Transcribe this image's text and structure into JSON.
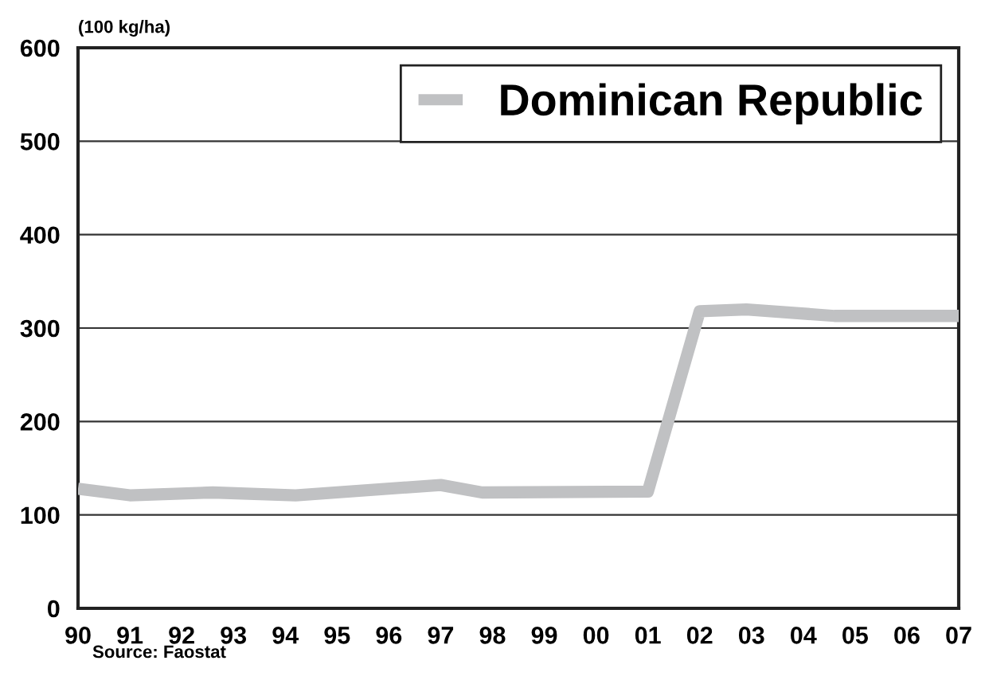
{
  "chart_data": {
    "type": "line",
    "ylabel": "(100 kg/ha)",
    "annotations": [
      "Source: Faostat"
    ],
    "series": [
      {
        "name": "Dominican Republic",
        "color": "#c0c1c3",
        "x": [
          1990,
          1991,
          1992.6,
          1994.2,
          1997,
          1997.8,
          2001,
          2002,
          2002.9,
          2004.6,
          2007
        ],
        "values": [
          128,
          121,
          124,
          121,
          132,
          124,
          125,
          318,
          320,
          313,
          313
        ]
      }
    ],
    "xlim": [
      1990,
      2007
    ],
    "xticks": [
      {
        "value": 1990,
        "label": "90"
      },
      {
        "value": 1991,
        "label": "91"
      },
      {
        "value": 1992,
        "label": "92"
      },
      {
        "value": 1993,
        "label": "93"
      },
      {
        "value": 1994,
        "label": "94"
      },
      {
        "value": 1995,
        "label": "95"
      },
      {
        "value": 1996,
        "label": "96"
      },
      {
        "value": 1997,
        "label": "97"
      },
      {
        "value": 1998,
        "label": "98"
      },
      {
        "value": 1999,
        "label": "99"
      },
      {
        "value": 2000,
        "label": "00"
      },
      {
        "value": 2001,
        "label": "01"
      },
      {
        "value": 2002,
        "label": "02"
      },
      {
        "value": 2003,
        "label": "03"
      },
      {
        "value": 2004,
        "label": "04"
      },
      {
        "value": 2005,
        "label": "05"
      },
      {
        "value": 2006,
        "label": "06"
      },
      {
        "value": 2007,
        "label": "07"
      }
    ],
    "ylim": [
      0,
      600
    ],
    "yticks": [
      0,
      100,
      200,
      300,
      400,
      500,
      600
    ],
    "grid": "y",
    "legend": "top right",
    "line_style": "solid",
    "marker": "none"
  }
}
